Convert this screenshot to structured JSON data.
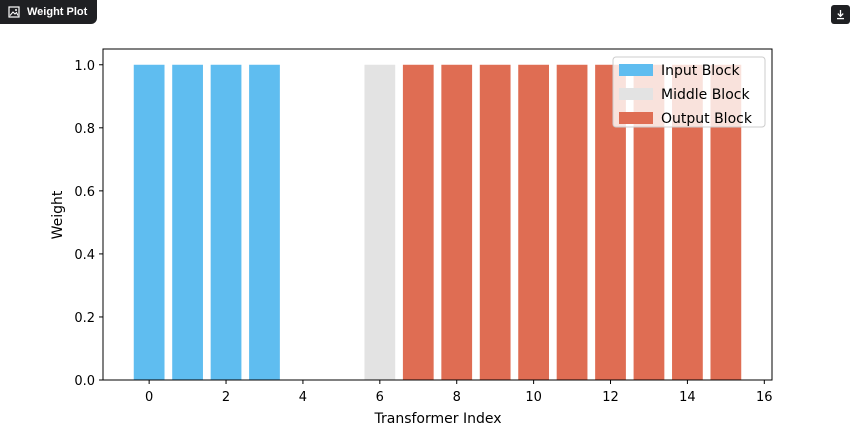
{
  "header": {
    "label": "Weight Plot",
    "label_icon": "image-icon",
    "download_icon": "download-icon"
  },
  "chart_data": {
    "type": "bar",
    "xlabel": "Transformer Index",
    "ylabel": "Weight",
    "xlim": [
      -1.2,
      16.2
    ],
    "ylim": [
      0,
      1.05
    ],
    "xticks": [
      0,
      2,
      4,
      6,
      8,
      10,
      12,
      14,
      16
    ],
    "yticks": [
      0.0,
      0.2,
      0.4,
      0.6,
      0.8,
      1.0
    ],
    "ytick_labels": [
      "0.0",
      "0.2",
      "0.4",
      "0.6",
      "0.8",
      "1.0"
    ],
    "grid": false,
    "legend_position": "top-right",
    "series": [
      {
        "name": "Input Block",
        "color": "#5fbdf0",
        "x": [
          0,
          1,
          2,
          3
        ],
        "values": [
          1,
          1,
          1,
          1
        ]
      },
      {
        "name": "Middle Block",
        "color": "#e3e3e3",
        "x": [
          4,
          5,
          6
        ],
        "values": [
          0,
          0,
          1
        ]
      },
      {
        "name": "Output Block",
        "color": "#df6d53",
        "x": [
          7,
          8,
          9,
          10,
          11,
          12,
          13,
          14,
          15
        ],
        "values": [
          1,
          1,
          1,
          1,
          1,
          1,
          1,
          1,
          1
        ]
      }
    ]
  }
}
